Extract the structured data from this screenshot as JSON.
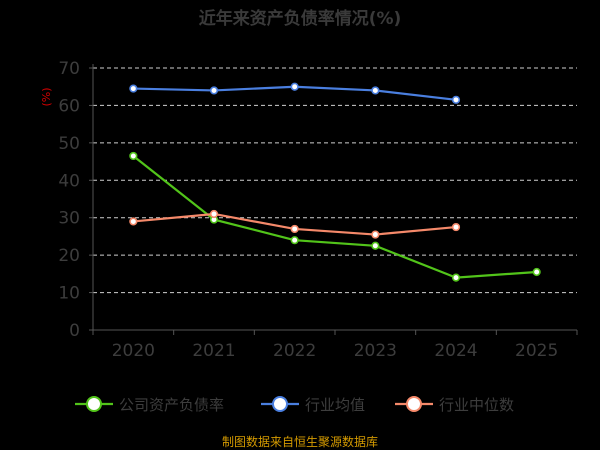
{
  "chart_data": {
    "type": "line",
    "title": "近年来资产负债率情况(%)",
    "ylabel": "(%)",
    "xlabel": "",
    "categories": [
      "2020",
      "2021",
      "2022",
      "2023",
      "2024",
      "2025"
    ],
    "ylim": [
      0,
      70
    ],
    "yticks": [
      0,
      10,
      20,
      30,
      40,
      50,
      60,
      70
    ],
    "grid": true,
    "legend_position": "bottom",
    "series": [
      {
        "name": "公司资产负债率",
        "color": "#52c41a",
        "values": [
          46.5,
          29.5,
          24.0,
          22.5,
          14.0,
          15.5
        ]
      },
      {
        "name": "行业均值",
        "color": "#4a7fe0",
        "values": [
          64.5,
          64.0,
          65.0,
          64.0,
          61.5,
          null
        ]
      },
      {
        "name": "行业中位数",
        "color": "#f5896a",
        "values": [
          29.0,
          31.0,
          27.0,
          25.5,
          27.5,
          null
        ]
      }
    ]
  },
  "footer": {
    "source": "制图数据来自恒生聚源数据库"
  }
}
